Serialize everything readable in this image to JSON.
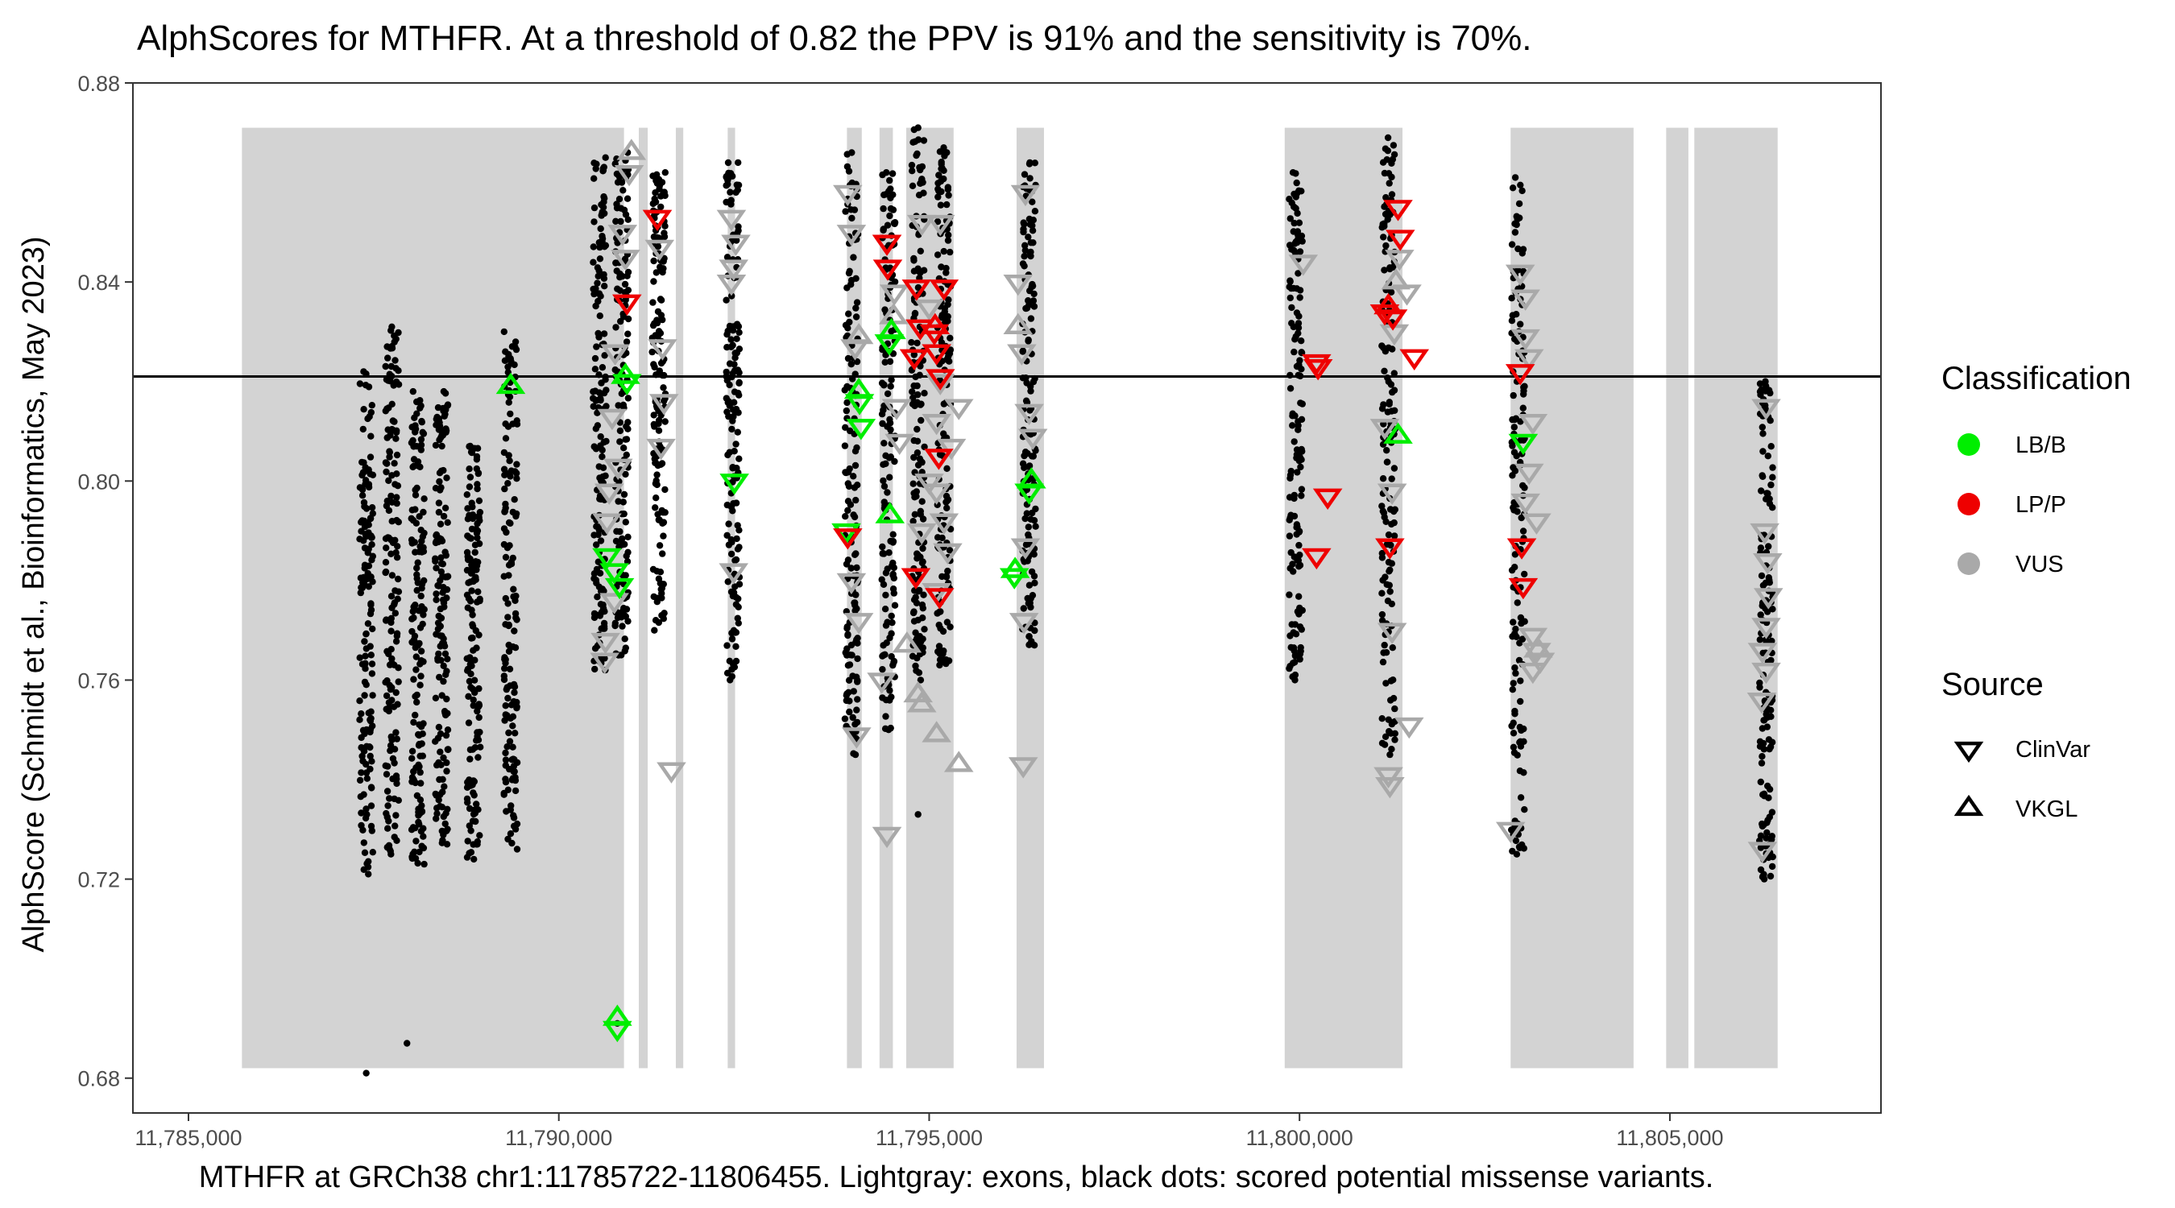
{
  "chart_data": {
    "type": "scatter",
    "title": "AlphScores for MTHFR. At a threshold of 0.82 the PPV is 91% and the sensitivity is 70%.",
    "xlabel": "MTHFR at GRCh38 chr1:11785722-11806455. Lightgray: exons, black dots: scored potential missense variants.",
    "ylabel": "AlphScore (Schmidt et al.,  Bioinformatics, May 2023)",
    "xlim": [
      11784250,
      11807850
    ],
    "ylim": [
      0.673,
      0.88
    ],
    "x_ticks": [
      11785000,
      11790000,
      11795000,
      11800000,
      11805000
    ],
    "x_tick_labels": [
      "11,785,000",
      "11,790,000",
      "11,795,000",
      "11,800,000",
      "11,805,000"
    ],
    "y_ticks": [
      0.68,
      0.72,
      0.76,
      0.8,
      0.84,
      0.88
    ],
    "y_tick_labels": [
      "0.68",
      "0.72",
      "0.76",
      "0.80",
      "0.84",
      "0.88"
    ],
    "threshold": 0.821,
    "grid": false,
    "exon_y_range": [
      0.682,
      0.871
    ],
    "exons": [
      [
        11785722,
        11790880
      ],
      [
        11791080,
        11791200
      ],
      [
        11791580,
        11791680
      ],
      [
        11792280,
        11792380
      ],
      [
        11793890,
        11794090
      ],
      [
        11794330,
        11794510
      ],
      [
        11794690,
        11795330
      ],
      [
        11796180,
        11796550
      ],
      [
        11799800,
        11801390
      ],
      [
        11802850,
        11804510
      ],
      [
        11804950,
        11805250
      ],
      [
        11805330,
        11806455
      ]
    ],
    "missense_columns": [
      {
        "x": 11787400,
        "ymin": 0.721,
        "ymax": 0.822
      },
      {
        "x": 11787750,
        "ymin": 0.725,
        "ymax": 0.831
      },
      {
        "x": 11788100,
        "ymin": 0.723,
        "ymax": 0.818
      },
      {
        "x": 11788420,
        "ymin": 0.727,
        "ymax": 0.818
      },
      {
        "x": 11788850,
        "ymin": 0.724,
        "ymax": 0.807
      },
      {
        "x": 11789350,
        "ymin": 0.726,
        "ymax": 0.83
      },
      {
        "x": 11790550,
        "ymin": 0.762,
        "ymax": 0.865
      },
      {
        "x": 11790850,
        "ymin": 0.765,
        "ymax": 0.866
      },
      {
        "x": 11791350,
        "ymin": 0.77,
        "ymax": 0.862
      },
      {
        "x": 11792350,
        "ymin": 0.76,
        "ymax": 0.864
      },
      {
        "x": 11793950,
        "ymin": 0.745,
        "ymax": 0.866
      },
      {
        "x": 11794450,
        "ymin": 0.75,
        "ymax": 0.862
      },
      {
        "x": 11794850,
        "ymin": 0.76,
        "ymax": 0.871
      },
      {
        "x": 11795200,
        "ymin": 0.763,
        "ymax": 0.867
      },
      {
        "x": 11796350,
        "ymin": 0.767,
        "ymax": 0.864
      },
      {
        "x": 11799950,
        "ymin": 0.76,
        "ymax": 0.862
      },
      {
        "x": 11801200,
        "ymin": 0.745,
        "ymax": 0.869
      },
      {
        "x": 11802950,
        "ymin": 0.725,
        "ymax": 0.861
      },
      {
        "x": 11806300,
        "ymin": 0.72,
        "ymax": 0.82
      }
    ],
    "outlier_points": [
      {
        "x": 11787400,
        "y": 0.681
      },
      {
        "x": 11787950,
        "y": 0.687
      },
      {
        "x": 11790790,
        "y": 0.691
      },
      {
        "x": 11794850,
        "y": 0.733
      }
    ],
    "legend": [
      {
        "title": "Classification",
        "entries": [
          {
            "label": "LB/B",
            "color": "#00ee00"
          },
          {
            "label": "LP/P",
            "color": "#ee0000"
          },
          {
            "label": "VUS",
            "color": "#a9a9a9"
          }
        ]
      },
      {
        "title": "Source",
        "entries": [
          {
            "label": "ClinVar",
            "shape": "triangle-down"
          },
          {
            "label": "VKGL",
            "shape": "triangle-up"
          }
        ]
      }
    ],
    "legend_position": "right",
    "series": [
      {
        "classification": "LB/B",
        "source": "ClinVar",
        "points": [
          [
            11790650,
            0.785
          ],
          [
            11790750,
            0.782
          ],
          [
            11790820,
            0.779
          ],
          [
            11790790,
            0.69
          ],
          [
            11790920,
            0.82
          ],
          [
            11792370,
            0.8
          ],
          [
            11794060,
            0.816
          ],
          [
            11794080,
            0.811
          ],
          [
            11794460,
            0.828
          ],
          [
            11793880,
            0.79
          ],
          [
            11796150,
            0.781
          ],
          [
            11796350,
            0.798
          ],
          [
            11803020,
            0.808
          ]
        ]
      },
      {
        "classification": "LB/B",
        "source": "VKGL",
        "points": [
          [
            11789350,
            0.819
          ],
          [
            11790790,
            0.692
          ],
          [
            11790900,
            0.821
          ],
          [
            11794050,
            0.818
          ],
          [
            11794490,
            0.83
          ],
          [
            11794470,
            0.793
          ],
          [
            11796160,
            0.782
          ],
          [
            11796380,
            0.8
          ],
          [
            11801330,
            0.809
          ]
        ]
      },
      {
        "classification": "LP/P",
        "source": "ClinVar",
        "points": [
          [
            11791330,
            0.853
          ],
          [
            11790920,
            0.836
          ],
          [
            11794430,
            0.848
          ],
          [
            11794440,
            0.843
          ],
          [
            11794830,
            0.839
          ],
          [
            11794880,
            0.831
          ],
          [
            11795070,
            0.83
          ],
          [
            11795200,
            0.839
          ],
          [
            11795100,
            0.826
          ],
          [
            11794800,
            0.825
          ],
          [
            11795150,
            0.821
          ],
          [
            11795130,
            0.805
          ],
          [
            11794820,
            0.781
          ],
          [
            11795140,
            0.777
          ],
          [
            11793900,
            0.789
          ],
          [
            11800230,
            0.824
          ],
          [
            11800250,
            0.823
          ],
          [
            11800380,
            0.797
          ],
          [
            11800230,
            0.785
          ],
          [
            11801330,
            0.855
          ],
          [
            11801360,
            0.849
          ],
          [
            11801150,
            0.834
          ],
          [
            11801260,
            0.833
          ],
          [
            11801550,
            0.825
          ],
          [
            11801220,
            0.787
          ],
          [
            11802980,
            0.822
          ],
          [
            11803000,
            0.787
          ],
          [
            11803020,
            0.779
          ]
        ]
      },
      {
        "classification": "LP/P",
        "source": "VKGL",
        "points": [
          [
            11801200,
            0.835
          ],
          [
            11795080,
            0.831
          ]
        ]
      },
      {
        "classification": "VUS",
        "source": "ClinVar",
        "points": [
          [
            11790950,
            0.862
          ],
          [
            11790860,
            0.85
          ],
          [
            11790900,
            0.845
          ],
          [
            11790760,
            0.826
          ],
          [
            11790720,
            0.813
          ],
          [
            11790800,
            0.803
          ],
          [
            11790680,
            0.798
          ],
          [
            11790650,
            0.792
          ],
          [
            11790750,
            0.776
          ],
          [
            11790630,
            0.768
          ],
          [
            11790620,
            0.764
          ],
          [
            11791360,
            0.847
          ],
          [
            11791400,
            0.827
          ],
          [
            11791420,
            0.816
          ],
          [
            11791380,
            0.807
          ],
          [
            11791520,
            0.742
          ],
          [
            11792330,
            0.853
          ],
          [
            11792390,
            0.848
          ],
          [
            11792360,
            0.843
          ],
          [
            11792330,
            0.84
          ],
          [
            11792360,
            0.782
          ],
          [
            11793900,
            0.858
          ],
          [
            11793950,
            0.85
          ],
          [
            11794000,
            0.827
          ],
          [
            11793950,
            0.78
          ],
          [
            11794050,
            0.772
          ],
          [
            11794020,
            0.749
          ],
          [
            11794360,
            0.76
          ],
          [
            11794430,
            0.729
          ],
          [
            11794530,
            0.838
          ],
          [
            11794560,
            0.815
          ],
          [
            11794600,
            0.808
          ],
          [
            11794900,
            0.852
          ],
          [
            11795150,
            0.852
          ],
          [
            11795000,
            0.835
          ],
          [
            11795150,
            0.82
          ],
          [
            11795100,
            0.812
          ],
          [
            11795400,
            0.815
          ],
          [
            11795300,
            0.807
          ],
          [
            11795000,
            0.8
          ],
          [
            11795100,
            0.798
          ],
          [
            11795200,
            0.792
          ],
          [
            11795250,
            0.786
          ],
          [
            11795100,
            0.778
          ],
          [
            11794900,
            0.79
          ],
          [
            11796300,
            0.858
          ],
          [
            11796200,
            0.84
          ],
          [
            11796250,
            0.826
          ],
          [
            11796350,
            0.814
          ],
          [
            11796400,
            0.809
          ],
          [
            11796300,
            0.787
          ],
          [
            11796280,
            0.772
          ],
          [
            11796270,
            0.743
          ],
          [
            11800050,
            0.844
          ],
          [
            11801150,
            0.811
          ],
          [
            11801250,
            0.798
          ],
          [
            11801350,
            0.845
          ],
          [
            11801280,
            0.83
          ],
          [
            11801450,
            0.838
          ],
          [
            11801250,
            0.77
          ],
          [
            11801200,
            0.741
          ],
          [
            11801220,
            0.739
          ],
          [
            11801480,
            0.751
          ],
          [
            11802980,
            0.842
          ],
          [
            11803050,
            0.837
          ],
          [
            11803050,
            0.829
          ],
          [
            11803100,
            0.825
          ],
          [
            11803150,
            0.812
          ],
          [
            11803100,
            0.802
          ],
          [
            11803050,
            0.796
          ],
          [
            11803200,
            0.792
          ],
          [
            11803150,
            0.769
          ],
          [
            11803200,
            0.766
          ],
          [
            11803250,
            0.764
          ],
          [
            11803150,
            0.762
          ],
          [
            11802850,
            0.73
          ],
          [
            11806300,
            0.815
          ],
          [
            11806280,
            0.79
          ],
          [
            11806320,
            0.784
          ],
          [
            11806330,
            0.777
          ],
          [
            11806300,
            0.771
          ],
          [
            11806250,
            0.766
          ],
          [
            11806300,
            0.762
          ],
          [
            11806240,
            0.756
          ],
          [
            11806250,
            0.726
          ]
        ]
      },
      {
        "classification": "VUS",
        "source": "VKGL",
        "points": [
          [
            11790980,
            0.866
          ],
          [
            11794050,
            0.829
          ],
          [
            11794520,
            0.833
          ],
          [
            11794700,
            0.767
          ],
          [
            11794850,
            0.757
          ],
          [
            11794900,
            0.755
          ],
          [
            11795100,
            0.749
          ],
          [
            11795400,
            0.743
          ],
          [
            11796200,
            0.831
          ],
          [
            11801300,
            0.84
          ],
          [
            11803220,
            0.766
          ]
        ]
      }
    ]
  }
}
